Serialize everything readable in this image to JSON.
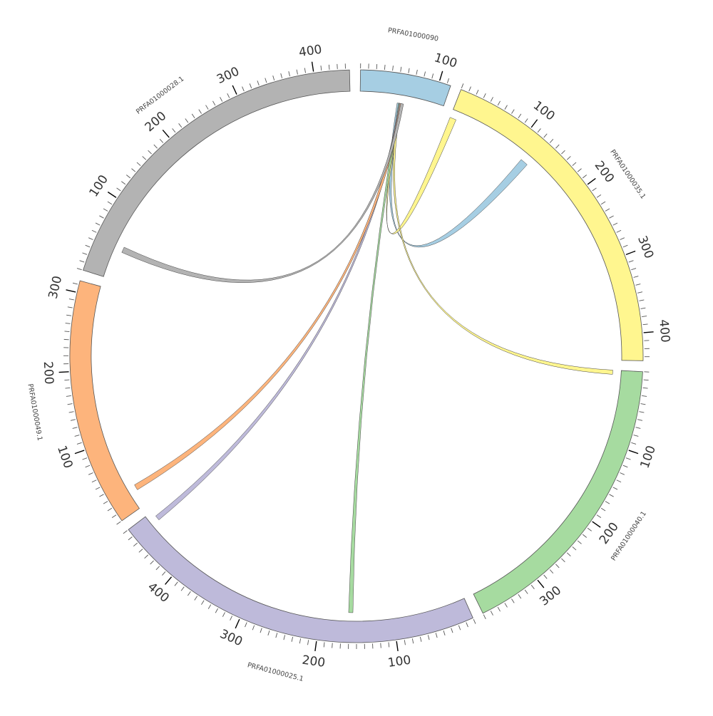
{
  "chart_data": {
    "type": "chord",
    "title": "",
    "segments": [
      {
        "name": "PRFA01000090",
        "length": 115,
        "color": "#a6cee3",
        "label_ticks": [
          100
        ]
      },
      {
        "name": "PRFA01000035.1",
        "length": 435,
        "color": "#fff68f",
        "label_ticks": [
          100,
          200,
          300,
          400
        ]
      },
      {
        "name": "PRFA01000040.1",
        "length": 380,
        "color": "#a6dba0",
        "label_ticks": [
          100,
          200,
          300
        ]
      },
      {
        "name": "PRFA01000025.1",
        "length": 480,
        "color": "#bebada",
        "label_ticks": [
          100,
          200,
          300,
          400
        ]
      },
      {
        "name": "PRFA01000049.1",
        "length": 315,
        "color": "#fdb47c",
        "label_ticks": [
          100,
          200,
          300
        ]
      },
      {
        "name": "PRFA01000028.1",
        "length": 445,
        "color": "#b3b3b3",
        "label_ticks": [
          100,
          200,
          300,
          400
        ]
      }
    ],
    "links": [
      {
        "source": "PRFA01000090",
        "source_range": [
          52,
          57
        ],
        "target": "PRFA01000035.1",
        "target_range": [
          116,
          127
        ],
        "color": "#a6cee3"
      },
      {
        "source": "PRFA01000090",
        "source_range": [
          55,
          58
        ],
        "target": "PRFA01000035.1",
        "target_range": [
          0,
          9
        ],
        "color": "#fff68f"
      },
      {
        "source": "PRFA01000090",
        "source_range": [
          55,
          58
        ],
        "target": "PRFA01000040.1",
        "target_range": [
          0,
          6
        ],
        "color": "#fff68f"
      },
      {
        "source": "PRFA01000090",
        "source_range": [
          54,
          57
        ],
        "target": "PRFA01000025.1",
        "target_range": [
          155,
          161
        ],
        "color": "#a6dba0"
      },
      {
        "source": "PRFA01000090",
        "source_range": [
          55,
          58
        ],
        "target": "PRFA01000025.1",
        "target_range": [
          465,
          472
        ],
        "color": "#bebada"
      },
      {
        "source": "PRFA01000090",
        "source_range": [
          56,
          60
        ],
        "target": "PRFA01000049.1",
        "target_range": [
          23,
          31
        ],
        "color": "#fdb47c"
      },
      {
        "source": "PRFA01000090",
        "source_range": [
          57,
          61
        ],
        "target": "PRFA01000028.1",
        "target_range": [
          40,
          48
        ],
        "color": "#b3b3b3"
      }
    ]
  }
}
